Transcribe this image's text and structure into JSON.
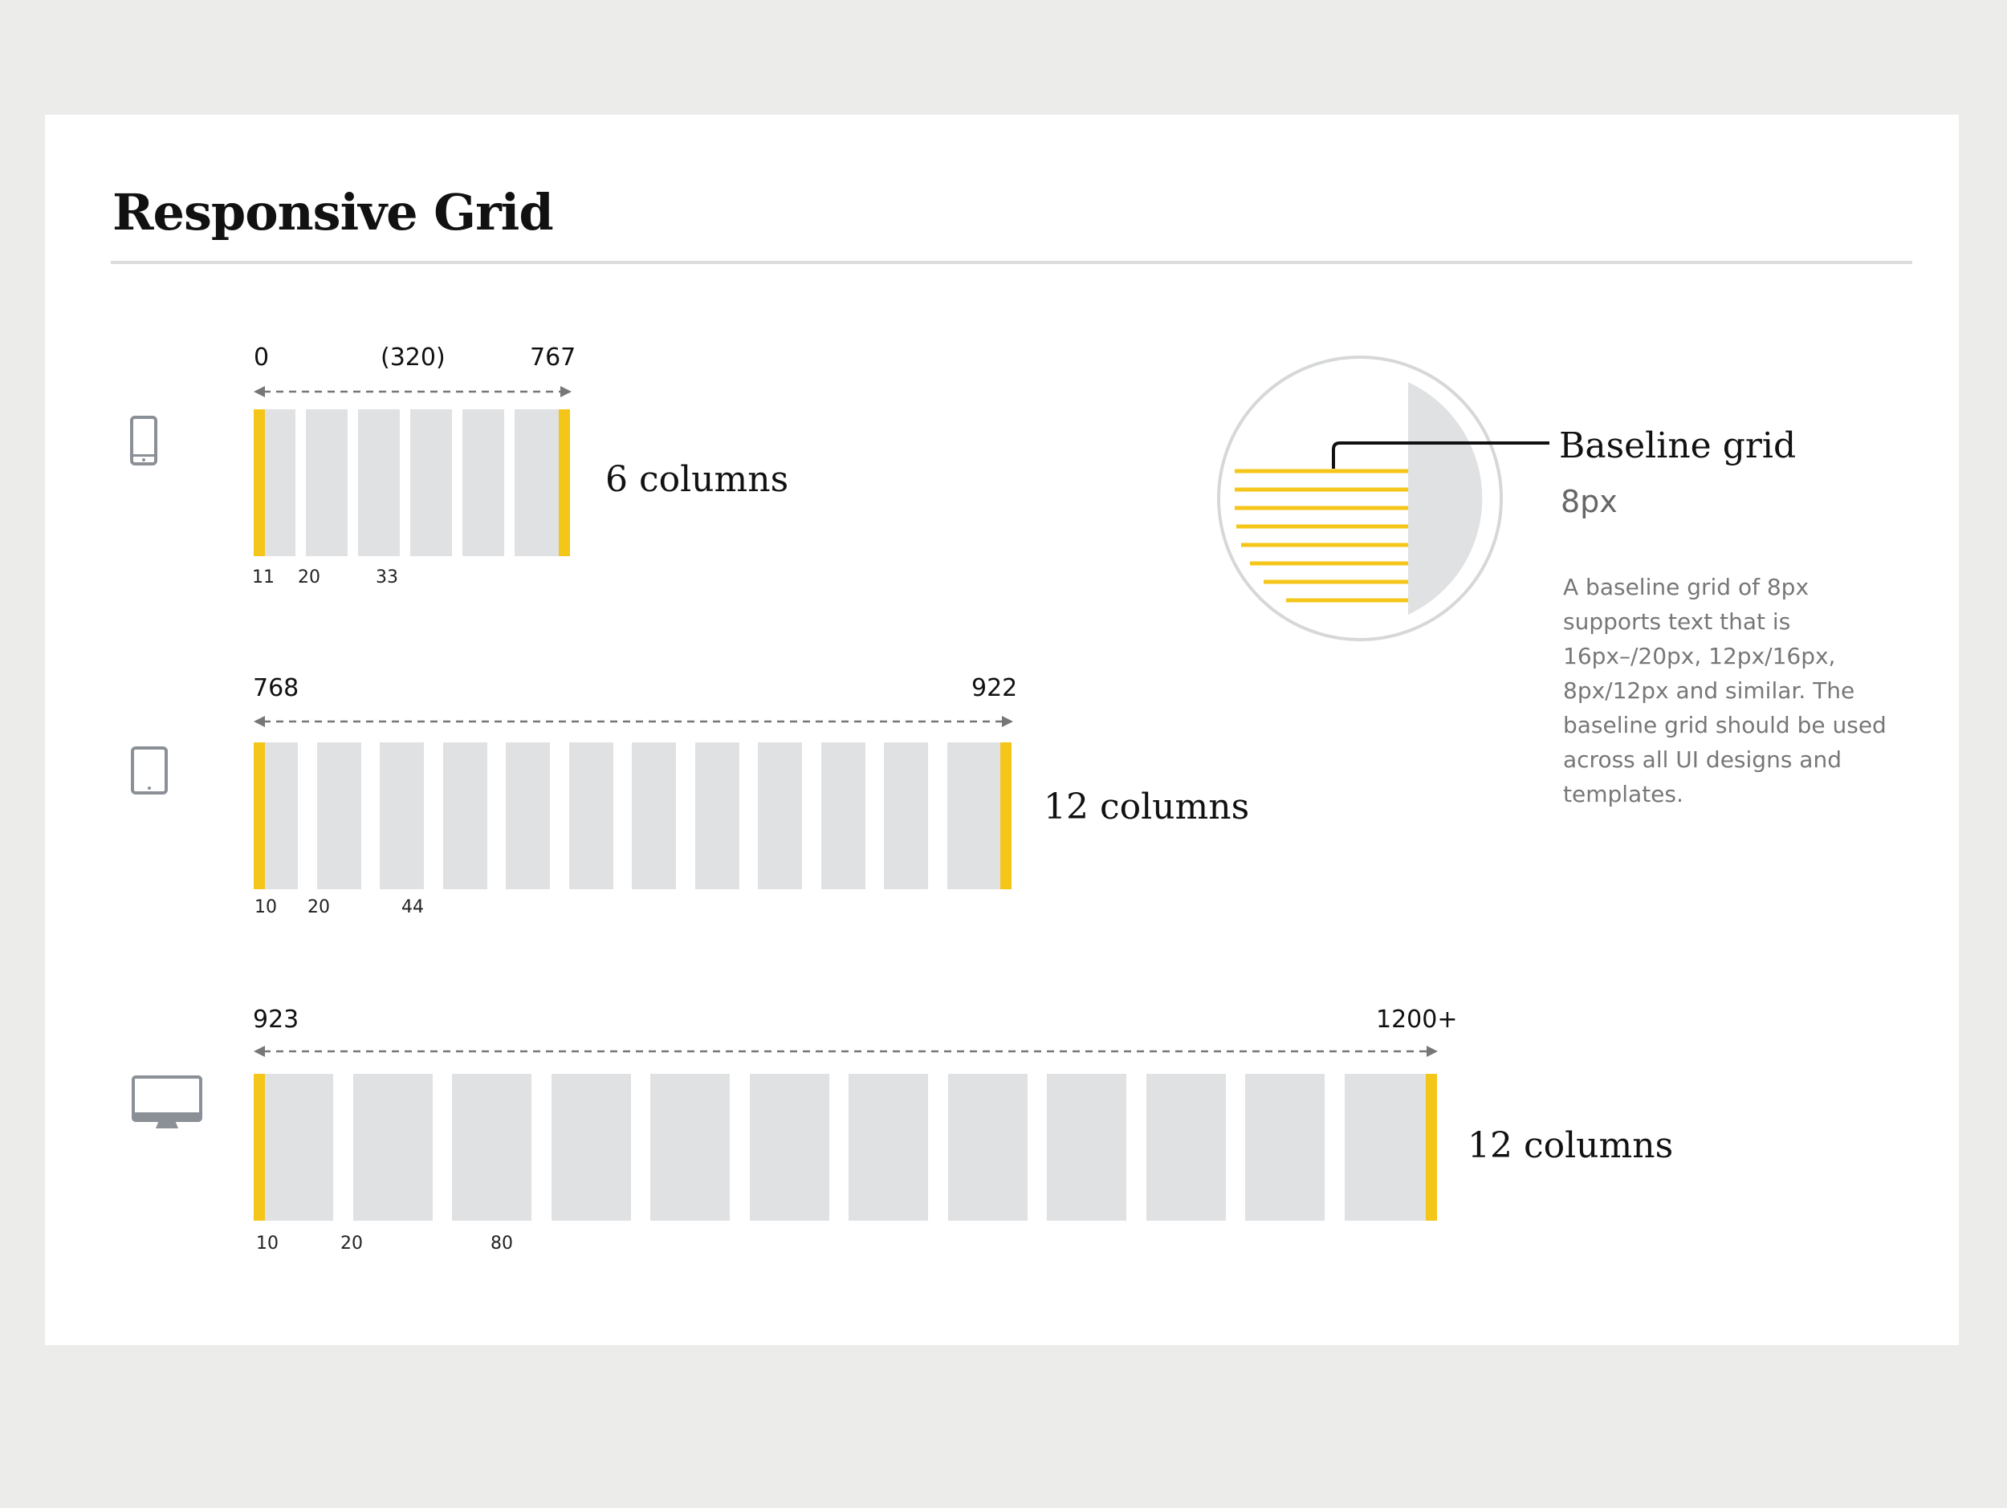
{
  "page": {
    "title": "Responsive Grid"
  },
  "rows": [
    {
      "device": "phone-icon",
      "range_start": "0",
      "range_mid": "(320)",
      "range_end": "767",
      "ticks": [
        "11",
        "20",
        "33"
      ],
      "columns_label": "6 columns",
      "column_count": 6
    },
    {
      "device": "tablet-icon",
      "range_start": "768",
      "range_end": "922",
      "ticks": [
        "10",
        "20",
        "44"
      ],
      "columns_label": "12 columns",
      "column_count": 12
    },
    {
      "device": "desktop-icon",
      "range_start": "923",
      "range_end": "1200+",
      "ticks": [
        "10",
        "20",
        "80"
      ],
      "columns_label": "12 columns",
      "column_count": 12
    }
  ],
  "baseline": {
    "title": "Baseline grid",
    "size": "8px",
    "description": "A baseline grid of 8px supports text that is 16px–/20px, 12px/16px, 8px/12px and similar. The baseline grid should be used across all UI designs and templates."
  },
  "colors": {
    "accent": "#f5c61a",
    "column": "#dfe1e3",
    "background": "#ececea",
    "card": "#ffffff",
    "icon": "#8a9096"
  }
}
